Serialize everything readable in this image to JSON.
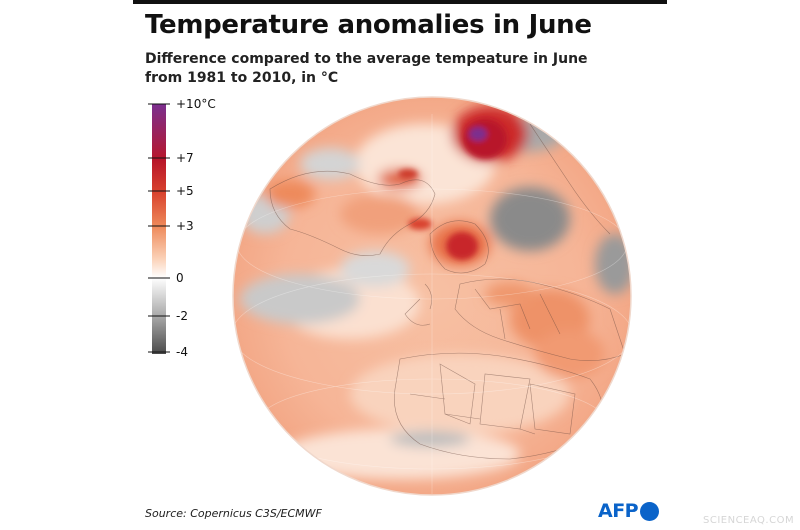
{
  "header": {
    "title": "Temperature anomalies in June",
    "subtitle": "Difference compared to the average tempeature in June from 1981 to 2010, in °C"
  },
  "legend": {
    "labels": [
      {
        "key": "p10",
        "text": "+10°C",
        "value": 10
      },
      {
        "key": "p7",
        "text": "+7",
        "value": 7
      },
      {
        "key": "p5",
        "text": "+5",
        "value": 5
      },
      {
        "key": "p3",
        "text": "+3",
        "value": 3
      },
      {
        "key": "zero",
        "text": "0",
        "value": 0
      },
      {
        "key": "m2",
        "text": "-2",
        "value": -2
      },
      {
        "key": "m4",
        "text": "-4",
        "value": -4
      }
    ],
    "colors": {
      "p10": "#7b2f8f",
      "p7": "#b8162a",
      "p5": "#d9432e",
      "p3": "#ee8a5b",
      "p1": "#fbd2b8",
      "zero": "#ffffff",
      "m2": "#a8a8a8",
      "m4": "#4a4a4a"
    }
  },
  "map": {
    "projection": "orthographic globe centered on Europe / North Atlantic"
  },
  "footer": {
    "source": "Source: Copernicus C3S/ECMWF",
    "logo_text": "AFP",
    "watermark": "SCIENCEAQ.COM"
  }
}
